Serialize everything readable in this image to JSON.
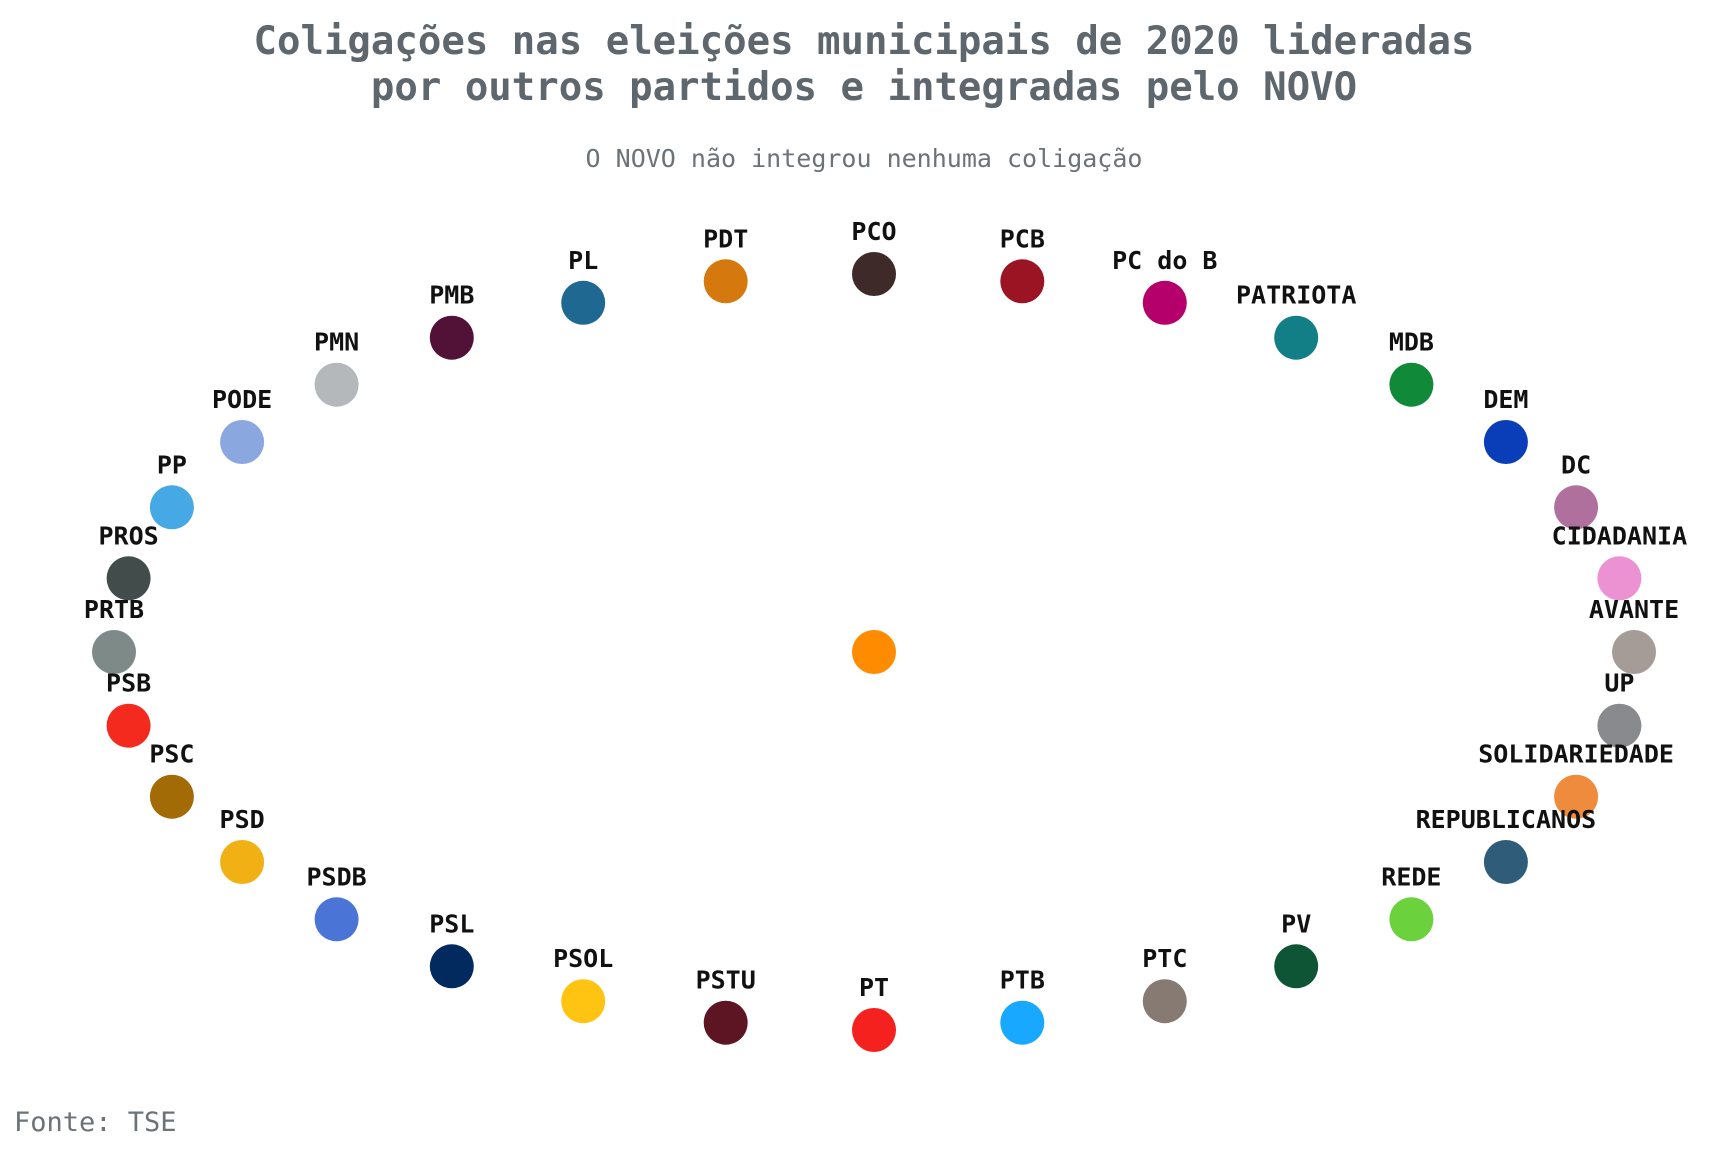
{
  "title_lines": [
    "Coligações nas eleições municipais de 2020 lideradas",
    "por outros partidos e integradas pelo NOVO"
  ],
  "subtitle": "O NOVO não integrou nenhuma coligação",
  "source": "Fonte: TSE",
  "chart_data": {
    "type": "network",
    "center_node": {
      "name": "NOVO",
      "color": "#FF8C00",
      "label_shown": false
    },
    "edges": [],
    "nodes": [
      {
        "name": "PCO",
        "color": "#3F2A2A"
      },
      {
        "name": "PCB",
        "color": "#9B1423"
      },
      {
        "name": "PC do B",
        "color": "#B5006B"
      },
      {
        "name": "PATRIOTA",
        "color": "#127F87"
      },
      {
        "name": "MDB",
        "color": "#108A38"
      },
      {
        "name": "DEM",
        "color": "#0A3DB8"
      },
      {
        "name": "DC",
        "color": "#B0709E"
      },
      {
        "name": "CIDADANIA",
        "color": "#EC92D2"
      },
      {
        "name": "AVANTE",
        "color": "#A59C98"
      },
      {
        "name": "UP",
        "color": "#888A8E"
      },
      {
        "name": "SOLIDARIEDADE",
        "color": "#EE8B3D"
      },
      {
        "name": "REPUBLICANOS",
        "color": "#2F5C79"
      },
      {
        "name": "REDE",
        "color": "#6BD23D"
      },
      {
        "name": "PV",
        "color": "#0E5535"
      },
      {
        "name": "PTC",
        "color": "#877A72"
      },
      {
        "name": "PTB",
        "color": "#19A8FF"
      },
      {
        "name": "PT",
        "color": "#F5211E"
      },
      {
        "name": "PSTU",
        "color": "#5E1523"
      },
      {
        "name": "PSOL",
        "color": "#FFC312"
      },
      {
        "name": "PSL",
        "color": "#032A5E"
      },
      {
        "name": "PSDB",
        "color": "#4B74D7"
      },
      {
        "name": "PSD",
        "color": "#F1B013"
      },
      {
        "name": "PSC",
        "color": "#A36B06"
      },
      {
        "name": "PSB",
        "color": "#F52A1E"
      },
      {
        "name": "PRTB",
        "color": "#7E8A88"
      },
      {
        "name": "PROS",
        "color": "#424D4B"
      },
      {
        "name": "PP",
        "color": "#46A8E4"
      },
      {
        "name": "PODE",
        "color": "#8AA7E0"
      },
      {
        "name": "PMN",
        "color": "#B4B8BB"
      },
      {
        "name": "PMB",
        "color": "#521238"
      },
      {
        "name": "PL",
        "color": "#1F6891"
      },
      {
        "name": "PDT",
        "color": "#D5780E"
      }
    ]
  }
}
